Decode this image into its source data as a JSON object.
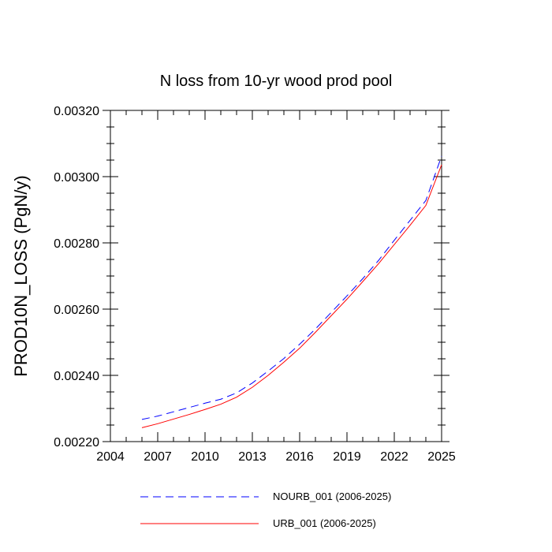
{
  "chart_data": {
    "type": "line",
    "title": "N loss from 10-yr wood prod pool",
    "xlabel": "",
    "ylabel": "PROD10N_LOSS  (PgN/y)",
    "xlim": [
      2004,
      2025
    ],
    "ylim": [
      0.0022,
      0.0032
    ],
    "xticks": [
      "2004",
      "2007",
      "2010",
      "2013",
      "2016",
      "2019",
      "2022",
      "2025"
    ],
    "yticks": [
      "0.00220",
      "0.00240",
      "0.00260",
      "0.00280",
      "0.00300",
      "0.00320"
    ],
    "legend_position": "bottom",
    "x": [
      2006,
      2007,
      2008,
      2009,
      2010,
      2011,
      2012,
      2013,
      2014,
      2015,
      2016,
      2017,
      2018,
      2019,
      2020,
      2021,
      2022,
      2023,
      2024,
      2025
    ],
    "series": [
      {
        "name": "NOURB_001 (2006-2025)",
        "color": "#0000ff",
        "dash": "dashed",
        "values": [
          0.002267,
          0.002277,
          0.00229,
          0.002303,
          0.002316,
          0.002328,
          0.002347,
          0.002377,
          0.002413,
          0.002451,
          0.002494,
          0.00254,
          0.00259,
          0.00264,
          0.002692,
          0.002747,
          0.002808,
          0.002868,
          0.002928,
          0.003062
        ]
      },
      {
        "name": "URB_001 (2006-2025)",
        "color": "#ff0000",
        "dash": "solid",
        "values": [
          0.002242,
          0.002254,
          0.002268,
          0.002282,
          0.002297,
          0.002313,
          0.002334,
          0.002364,
          0.0024,
          0.00244,
          0.002482,
          0.00253,
          0.00258,
          0.00263,
          0.002683,
          0.002737,
          0.002795,
          0.002853,
          0.002913,
          0.003036
        ]
      }
    ]
  }
}
